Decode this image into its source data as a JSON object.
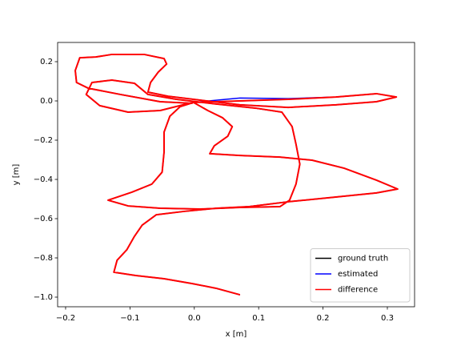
{
  "chart_data": {
    "type": "line",
    "xlabel": "x [m]",
    "ylabel": "y [m]",
    "xlim": [
      -0.2124,
      0.3423
    ],
    "ylim": [
      -1.049,
      0.298
    ],
    "xticks": [
      {
        "value": -0.2,
        "label": "−0.2"
      },
      {
        "value": -0.1,
        "label": "−0.1"
      },
      {
        "value": 0,
        "label": "0.0"
      },
      0.1,
      0.2,
      0.3
    ],
    "yticks": [
      0.2,
      {
        "value": 0,
        "label": "0.0"
      },
      {
        "value": -0.2,
        "label": "−0.2"
      },
      {
        "value": -0.4,
        "label": "−0.4"
      },
      {
        "value": -0.6,
        "label": "−0.6"
      },
      {
        "value": -0.8,
        "label": "−0.8"
      },
      {
        "value": -1.0,
        "label": "−1.0"
      }
    ],
    "grid": false,
    "legend": "lower right",
    "series": [
      {
        "name": "ground truth",
        "color": "#000000",
        "x": [
          0.071,
          0.034,
          -0.003,
          -0.047,
          -0.091,
          -0.125,
          -0.12,
          -0.105,
          -0.093,
          -0.081,
          -0.059,
          -0.016,
          0.034,
          0.084,
          0.146,
          0.22,
          0.283,
          0.316,
          0.283,
          0.233,
          0.183,
          0.133,
          0.071,
          0.024,
          0.031,
          0.052,
          0.059,
          0.044,
          0.021,
          -0.001,
          -0.022,
          -0.038,
          -0.047,
          -0.047,
          -0.05,
          -0.066,
          -0.097,
          -0.134,
          -0.103,
          -0.053,
          0.009,
          0.071,
          0.133,
          0.148,
          0.158,
          0.164,
          0.158,
          0.152,
          0.136,
          0.096,
          0.034,
          -0.028,
          -0.072,
          -0.093,
          -0.128,
          -0.159,
          -0.168,
          -0.147,
          -0.103,
          -0.053,
          -0.003,
          0.071,
          0.146,
          0.22,
          0.283,
          0.314,
          0.283,
          0.22,
          0.146,
          0.071,
          0.009,
          -0.041,
          -0.072,
          -0.068,
          -0.056,
          -0.043,
          -0.047,
          -0.078,
          -0.128,
          -0.153,
          -0.178,
          -0.185,
          -0.183,
          -0.165,
          -0.115,
          -0.053,
          -0.003
        ],
        "values": [
          -0.988,
          -0.955,
          -0.931,
          -0.906,
          -0.89,
          -0.873,
          -0.812,
          -0.759,
          -0.69,
          -0.633,
          -0.58,
          -0.563,
          -0.547,
          -0.539,
          -0.514,
          -0.49,
          -0.469,
          -0.449,
          -0.404,
          -0.343,
          -0.302,
          -0.286,
          -0.278,
          -0.269,
          -0.229,
          -0.18,
          -0.131,
          -0.086,
          -0.049,
          -0.008,
          -0.029,
          -0.078,
          -0.159,
          -0.261,
          -0.363,
          -0.424,
          -0.465,
          -0.506,
          -0.535,
          -0.547,
          -0.551,
          -0.543,
          -0.539,
          -0.506,
          -0.424,
          -0.322,
          -0.22,
          -0.131,
          -0.057,
          -0.037,
          -0.016,
          0.008,
          0.033,
          0.09,
          0.106,
          0.094,
          0.033,
          -0.024,
          -0.057,
          -0.049,
          -0.008,
          0.0,
          0.008,
          0.02,
          0.037,
          0.02,
          -0.004,
          -0.02,
          -0.033,
          -0.02,
          0.004,
          0.024,
          0.045,
          0.094,
          0.147,
          0.188,
          0.216,
          0.237,
          0.237,
          0.224,
          0.22,
          0.155,
          0.094,
          0.065,
          0.033,
          -0.004,
          -0.012
        ]
      },
      {
        "name": "estimated",
        "color": "#0000ff",
        "x": [
          0.071,
          0.034,
          -0.003,
          -0.047,
          -0.091,
          -0.125,
          -0.12,
          -0.105,
          -0.093,
          -0.081,
          -0.059,
          -0.016,
          0.034,
          0.084,
          0.146,
          0.22,
          0.283,
          0.316,
          0.283,
          0.233,
          0.183,
          0.133,
          0.071,
          0.024,
          0.031,
          0.052,
          0.059,
          0.044,
          0.021,
          -0.001,
          -0.022,
          -0.038,
          -0.047,
          -0.047,
          -0.05,
          -0.066,
          -0.097,
          -0.134,
          -0.103,
          -0.053,
          0.009,
          0.071,
          0.133,
          0.148,
          0.158,
          0.164,
          0.158,
          0.152,
          0.136,
          0.096,
          0.034,
          -0.028,
          -0.072,
          -0.093,
          -0.128,
          -0.159,
          -0.168,
          -0.147,
          -0.103,
          -0.053,
          -0.003,
          0.071,
          0.146,
          0.22,
          0.283,
          0.314,
          0.283,
          0.22,
          0.146,
          0.071,
          0.009,
          -0.041,
          -0.072,
          -0.068,
          -0.056,
          -0.043,
          -0.047,
          -0.078,
          -0.128,
          -0.153,
          -0.178,
          -0.185,
          -0.183,
          -0.165,
          -0.115,
          -0.053,
          -0.003
        ],
        "values": [
          -0.988,
          -0.955,
          -0.931,
          -0.906,
          -0.89,
          -0.873,
          -0.812,
          -0.759,
          -0.69,
          -0.633,
          -0.58,
          -0.563,
          -0.547,
          -0.539,
          -0.514,
          -0.49,
          -0.469,
          -0.449,
          -0.404,
          -0.343,
          -0.302,
          -0.286,
          -0.278,
          -0.269,
          -0.229,
          -0.18,
          -0.131,
          -0.086,
          -0.049,
          -0.008,
          -0.029,
          -0.078,
          -0.159,
          -0.261,
          -0.363,
          -0.424,
          -0.465,
          -0.506,
          -0.535,
          -0.547,
          -0.551,
          -0.543,
          -0.539,
          -0.506,
          -0.424,
          -0.322,
          -0.22,
          -0.131,
          -0.057,
          -0.037,
          -0.016,
          0.008,
          0.033,
          0.09,
          0.106,
          0.094,
          0.033,
          -0.024,
          -0.057,
          -0.049,
          -0.008,
          0.015,
          0.012,
          0.02,
          0.037,
          0.02,
          -0.004,
          -0.02,
          -0.033,
          -0.02,
          0.004,
          0.024,
          0.045,
          0.094,
          0.147,
          0.188,
          0.216,
          0.237,
          0.237,
          0.224,
          0.22,
          0.155,
          0.094,
          0.065,
          0.033,
          -0.004,
          -0.012
        ]
      },
      {
        "name": "difference",
        "color": "#ff0000",
        "x": [
          0.071,
          0.034,
          -0.003,
          -0.047,
          -0.091,
          -0.125,
          -0.12,
          -0.105,
          -0.093,
          -0.081,
          -0.059,
          -0.016,
          0.034,
          0.084,
          0.146,
          0.22,
          0.283,
          0.316,
          0.283,
          0.233,
          0.183,
          0.133,
          0.071,
          0.024,
          0.031,
          0.052,
          0.059,
          0.044,
          0.021,
          -0.001,
          -0.022,
          -0.038,
          -0.047,
          -0.047,
          -0.05,
          -0.066,
          -0.097,
          -0.134,
          -0.103,
          -0.053,
          0.009,
          0.071,
          0.133,
          0.148,
          0.158,
          0.164,
          0.158,
          0.152,
          0.136,
          0.096,
          0.034,
          -0.028,
          -0.072,
          -0.093,
          -0.128,
          -0.159,
          -0.168,
          -0.147,
          -0.103,
          -0.053,
          -0.003,
          0.071,
          0.146,
          0.22,
          0.283,
          0.314,
          0.283,
          0.22,
          0.146,
          0.071,
          0.009,
          -0.041,
          -0.072,
          -0.068,
          -0.056,
          -0.043,
          -0.047,
          -0.078,
          -0.128,
          -0.153,
          -0.178,
          -0.185,
          -0.183,
          -0.165,
          -0.115,
          -0.053,
          -0.003
        ],
        "values": [
          -0.988,
          -0.955,
          -0.931,
          -0.906,
          -0.89,
          -0.873,
          -0.812,
          -0.759,
          -0.69,
          -0.633,
          -0.58,
          -0.563,
          -0.547,
          -0.539,
          -0.514,
          -0.49,
          -0.469,
          -0.449,
          -0.404,
          -0.343,
          -0.302,
          -0.286,
          -0.278,
          -0.269,
          -0.229,
          -0.18,
          -0.131,
          -0.086,
          -0.049,
          -0.008,
          -0.029,
          -0.078,
          -0.159,
          -0.261,
          -0.363,
          -0.424,
          -0.465,
          -0.506,
          -0.535,
          -0.547,
          -0.551,
          -0.543,
          -0.539,
          -0.506,
          -0.424,
          -0.322,
          -0.22,
          -0.131,
          -0.057,
          -0.037,
          -0.016,
          0.008,
          0.033,
          0.09,
          0.106,
          0.094,
          0.033,
          -0.024,
          -0.057,
          -0.049,
          -0.008,
          0.0,
          0.008,
          0.02,
          0.037,
          0.02,
          -0.004,
          -0.02,
          -0.033,
          -0.02,
          0.004,
          0.024,
          0.045,
          0.094,
          0.147,
          0.188,
          0.216,
          0.237,
          0.237,
          0.224,
          0.22,
          0.155,
          0.094,
          0.065,
          0.033,
          -0.004,
          -0.012
        ]
      }
    ]
  }
}
